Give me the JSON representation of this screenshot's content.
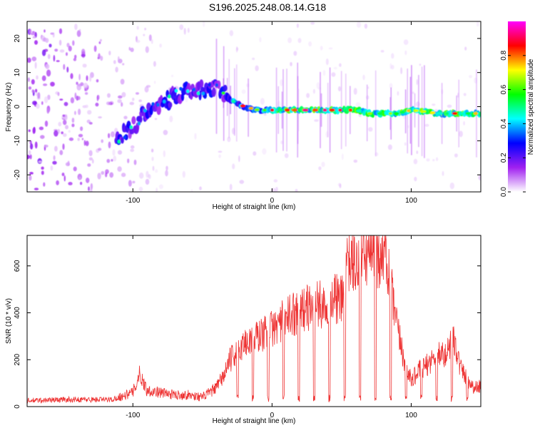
{
  "title": "S196.2025.248.08.14.G18",
  "chart_data": [
    {
      "type": "heatmap",
      "xlabel": "Height of straight line (km)",
      "ylabel": "Frequency (Hz)",
      "xlim": [
        -176,
        150
      ],
      "ylim": [
        -25,
        25
      ],
      "x_ticks": [
        -100,
        0,
        100
      ],
      "y_ticks": [
        -20,
        -10,
        0,
        10,
        20
      ],
      "colorbar": {
        "label": "Normalized spectral amplitude",
        "range": [
          0,
          1
        ],
        "ticks": [
          "0.0",
          "0.2",
          "0.4",
          "0.6",
          "0.8"
        ],
        "tick_values": [
          0,
          0.2,
          0.4,
          0.6,
          0.8
        ],
        "colors": [
          "#ffffff",
          "#a020f0",
          "#0000ff",
          "#00ffff",
          "#00ff00",
          "#ffff00",
          "#ff0000",
          "#ff00ff"
        ]
      },
      "ridge": {
        "x": [
          -110,
          -100,
          -90,
          -80,
          -70,
          -60,
          -50,
          -40,
          -30,
          -20,
          -10,
          0,
          20,
          40,
          60,
          70,
          80,
          90,
          100,
          120,
          140,
          150
        ],
        "y": [
          -9,
          -6,
          -1,
          1,
          3,
          5,
          5,
          6,
          2,
          0,
          -1,
          -1,
          -1,
          -1,
          -1,
          -2,
          -2,
          -2,
          -1,
          -2,
          -2,
          -2
        ]
      }
    },
    {
      "type": "line",
      "xlabel": "Height of straight line (km)",
      "ylabel": "SNR (10 * v/v)",
      "xlim": [
        -176,
        150
      ],
      "ylim": [
        0,
        730
      ],
      "x_ticks": [
        -100,
        0,
        100
      ],
      "y_ticks": [
        0,
        200,
        400,
        600
      ],
      "series": [
        {
          "name": "SNR",
          "color": "#ee3333",
          "x": [
            -176,
            -150,
            -130,
            -115,
            -110,
            -100,
            -95,
            -90,
            -80,
            -70,
            -60,
            -50,
            -40,
            -35,
            -30,
            -20,
            -10,
            0,
            10,
            20,
            30,
            40,
            45,
            50,
            55,
            60,
            65,
            70,
            75,
            80,
            85,
            90,
            95,
            100,
            105,
            110,
            115,
            120,
            125,
            130,
            135,
            140,
            145,
            150
          ],
          "y": [
            25,
            30,
            30,
            30,
            40,
            60,
            140,
            70,
            60,
            50,
            50,
            40,
            80,
            130,
            200,
            270,
            300,
            330,
            380,
            410,
            430,
            440,
            460,
            450,
            620,
            600,
            640,
            660,
            640,
            680,
            520,
            330,
            200,
            110,
            150,
            170,
            200,
            230,
            210,
            320,
            170,
            120,
            80,
            90
          ]
        }
      ]
    }
  ]
}
